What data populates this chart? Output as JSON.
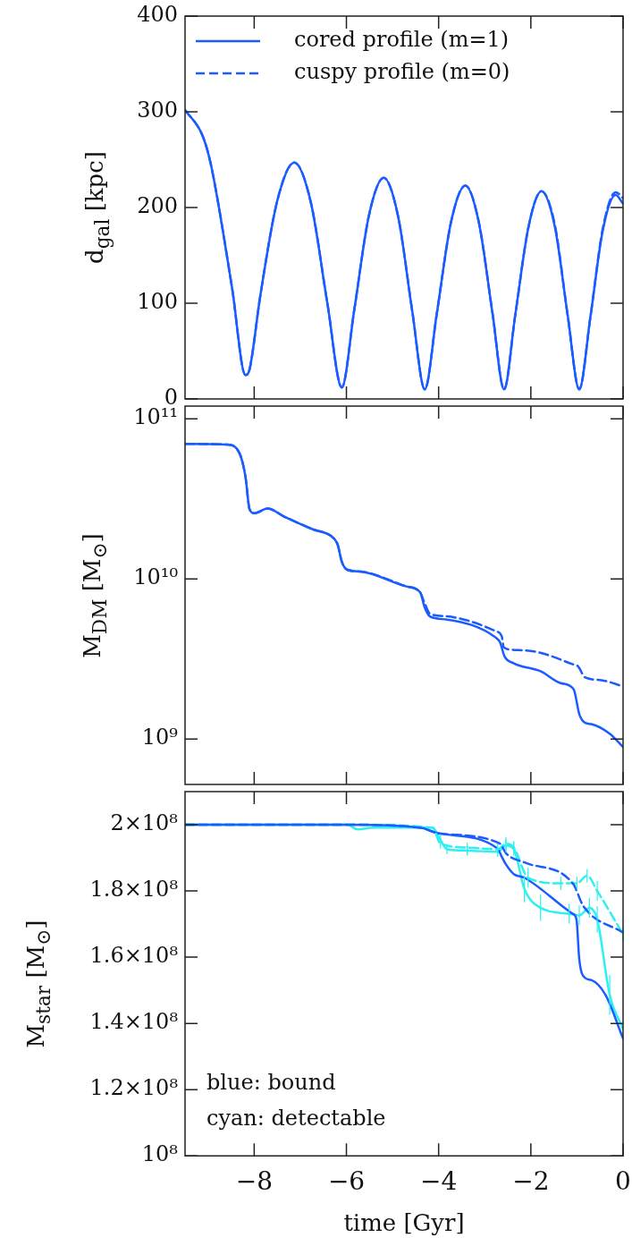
{
  "chart_data": [
    {
      "type": "line",
      "ylabel": "d$_{gal}$ [kpc]",
      "xlim": [
        -9.5,
        0
      ],
      "xticks": [
        -8,
        -6,
        -4,
        -2,
        0
      ],
      "ylim": [
        0,
        400
      ],
      "yticks": [
        0,
        100,
        200,
        300,
        400
      ],
      "tick_labels": "y",
      "legend": "top left",
      "x": [
        -9.5,
        -9.12,
        -8.94,
        -8.48,
        -8.19,
        -8.1,
        -7.87,
        -7.5,
        -7.13,
        -6.77,
        -6.41,
        -6.1,
        -5.83,
        -5.51,
        -5.19,
        -4.88,
        -4.57,
        -4.3,
        -4.04,
        -3.73,
        -3.42,
        -3.13,
        -2.83,
        -2.58,
        -2.34,
        -2.05,
        -1.77,
        -1.48,
        -1.2,
        -0.95,
        -0.71,
        -0.44,
        -0.16,
        0
      ],
      "series": [
        {
          "name": "cored profile (m=1)",
          "color": "#1a5cff",
          "values": [
            302,
            275,
            245,
            116,
            25,
            31,
            107,
            207,
            247,
            205,
            99,
            12,
            93,
            192,
            231,
            191,
            91,
            10,
            89,
            185,
            223,
            185,
            89,
            10,
            87,
            180,
            217,
            180,
            87,
            10,
            85,
            176,
            213,
            204
          ]
        },
        {
          "name": "cuspy profile (m=0)",
          "color": "#1a5cff",
          "line_style": "dashed",
          "values": [
            302,
            275,
            245,
            116,
            25,
            31,
            107,
            207,
            247,
            205,
            99,
            12,
            93,
            192,
            231,
            191,
            91,
            10,
            89,
            185,
            223,
            185,
            89,
            10,
            87,
            180,
            217,
            182,
            87,
            10,
            85,
            178,
            216,
            210
          ]
        }
      ]
    },
    {
      "type": "line",
      "ylabel": "M$_{DM}$ [M$_{⊙}$]",
      "log": true,
      "xlim": [
        -9.5,
        0
      ],
      "xticks": [
        -8,
        -6,
        -4,
        -2,
        0
      ],
      "ylim": [
        520000000,
        120000000000
      ],
      "yticks": [
        {
          "value": 1000000000,
          "label": "10⁹"
        },
        {
          "value": 10000000000,
          "label": "10¹⁰"
        },
        {
          "value": 100000000000,
          "label": "10¹¹"
        }
      ],
      "tick_labels": "y",
      "series": [
        {
          "color": "#1a5cff",
          "x": [
            -9.5,
            -8.59,
            -8.32,
            -8.19,
            -8.1,
            -7.99,
            -7.71,
            -7.35,
            -6.73,
            -6.29,
            -6.19,
            -6.1,
            -5.98,
            -5.68,
            -4.7,
            -4.4,
            -4.31,
            -4.19,
            -3.82,
            -2.76,
            -2.67,
            -2.57,
            -2.37,
            -1.79,
            -1.35,
            -1.07,
            -0.95,
            -0.82,
            -0.69,
            -0.29,
            0
          ],
          "values": [
            69700000000.0,
            69000000000.0,
            61000000000.0,
            43500000000.0,
            27200000000.0,
            25700000000.0,
            27500000000.0,
            24500000000.0,
            20400000000.0,
            18100000000.0,
            16400000000.0,
            12800000000.0,
            11400000000.0,
            11100000000.0,
            8970000000.0,
            8230000000.0,
            6730000000.0,
            5830000000.0,
            5570000000.0,
            4300000000.0,
            4020000000.0,
            3280000000.0,
            2970000000.0,
            2650000000.0,
            2230000000.0,
            2040000000.0,
            1430000000.0,
            1260000000.0,
            1240000000.0,
            1080000000.0,
            890000000.0
          ]
        },
        {
          "color": "#1a5cff",
          "line_style": "dashed",
          "x": [
            -9.5,
            -8.59,
            -8.32,
            -8.19,
            -8.1,
            -7.99,
            -7.71,
            -7.35,
            -6.73,
            -6.29,
            -6.19,
            -6.1,
            -5.98,
            -5.68,
            -4.7,
            -4.4,
            -4.31,
            -4.19,
            -3.82,
            -2.76,
            -2.63,
            -2.59,
            -2.45,
            -1.84,
            -1.09,
            -0.98,
            -0.82,
            -0.47,
            0
          ],
          "values": [
            69700000000.0,
            69000000000.0,
            61000000000.0,
            43500000000.0,
            27200000000.0,
            25700000000.0,
            27500000000.0,
            24500000000.0,
            20400000000.0,
            18100000000.0,
            16400000000.0,
            12800000000.0,
            11400000000.0,
            11100000000.0,
            8970000000.0,
            8230000000.0,
            7130000000.0,
            6070000000.0,
            5830000000.0,
            4710000000.0,
            4370000000.0,
            3750000000.0,
            3620000000.0,
            3480000000.0,
            2930000000.0,
            2850000000.0,
            2420000000.0,
            2330000000.0,
            2130000000.0
          ]
        }
      ]
    },
    {
      "type": "line",
      "xlabel": "time [Gyr]",
      "ylabel": "M$_{star}$ [M$_{⊙}$]",
      "xlim": [
        -9.5,
        0
      ],
      "xticks": [
        {
          "value": -8,
          "label": "−8"
        },
        {
          "value": -6,
          "label": "−6"
        },
        {
          "value": -4,
          "label": "−4"
        },
        {
          "value": -2,
          "label": "−2"
        },
        0
      ],
      "ylim": [
        100000000,
        210000000
      ],
      "yticks": [
        {
          "value": 100000000,
          "label": "10⁸"
        },
        {
          "value": 120000000,
          "label": "1.2×10⁸"
        },
        {
          "value": 140000000,
          "label": "1.4×10⁸"
        },
        {
          "value": 160000000,
          "label": "1.6×10⁸"
        },
        {
          "value": 180000000,
          "label": "1.8×10⁸"
        },
        {
          "value": 200000000,
          "label": "2×10⁸"
        }
      ],
      "annotations": [
        "blue: bound",
        "cyan: detectable"
      ],
      "series": [
        {
          "color": "#1a5cff",
          "x": [
            -9.5,
            -6,
            -4.4,
            -4.0,
            -2.72,
            -2.63,
            -2.54,
            -2.37,
            -2.14,
            -1.09,
            -1.01,
            -0.95,
            -0.82,
            -0.69,
            -0.38,
            0
          ],
          "values": [
            200000000.0,
            200000000.0,
            199100000.0,
            197400000.0,
            192800000.0,
            190300000.0,
            188000000.0,
            185100000.0,
            184000000.0,
            173100000.0,
            171400000.0,
            159400000.0,
            153700000.0,
            153100000.0,
            148600000.0,
            135400000.0
          ]
        },
        {
          "color": "#1a5cff",
          "line_style": "dashed",
          "x": [
            -9.5,
            -6,
            -4.4,
            -4.0,
            -2.67,
            -2.54,
            -2.14,
            -1.09,
            -0.86,
            0
          ],
          "values": [
            200000000.0,
            200000000.0,
            199100000.0,
            197400000.0,
            194300000.0,
            191400000.0,
            188600000.0,
            182300000.0,
            175400000.0,
            167400000.0
          ]
        },
        {
          "color": "#2ef0f0",
          "x": [
            -9.5,
            -5.98,
            -5.76,
            -5.41,
            -4.13,
            -3.96,
            -3.82,
            -3.38,
            -2.72,
            -2.54,
            -2.37,
            -2.14,
            -1.79,
            -1.17,
            -0.95,
            -0.73,
            -0.56,
            -0.29,
            0
          ],
          "values": [
            200000000.0,
            200000000.0,
            198600000.0,
            199100000.0,
            199100000.0,
            195400000.0,
            192600000.0,
            192200000.0,
            191800000.0,
            193700000.0,
            192600000.0,
            180600000.0,
            174900000.0,
            173100000.0,
            172600000.0,
            174900000.0,
            171400000.0,
            148600000.0,
            138300000.0
          ],
          "errors": [
            null,
            null,
            null,
            null,
            null,
            1500000,
            1500000,
            1500000,
            1500000,
            2000000,
            2000000,
            4000000,
            4000000,
            3000000,
            3000000,
            3000000,
            4000000,
            6000000,
            null
          ]
        },
        {
          "color": "#2ef0f0",
          "line_style": "dashed",
          "x": [
            -9.5,
            -5.98,
            -4.13,
            -3.96,
            -3.38,
            -2.72,
            -2.54,
            -2.37,
            -2.06,
            -1.35,
            -1.0,
            -0.78,
            -0.56,
            0
          ],
          "values": [
            200000000.0,
            200000000.0,
            199100000.0,
            194300000.0,
            193100000.0,
            192600000.0,
            194300000.0,
            193100000.0,
            184000000.0,
            182300000.0,
            182300000.0,
            184600000.0,
            180000000.0,
            166900000.0
          ],
          "errors": [
            null,
            null,
            null,
            1500000,
            1500000,
            1500000,
            2000000,
            2000000,
            3000000,
            2000000,
            2000000,
            2000000,
            3000000,
            2000000
          ]
        }
      ]
    }
  ]
}
